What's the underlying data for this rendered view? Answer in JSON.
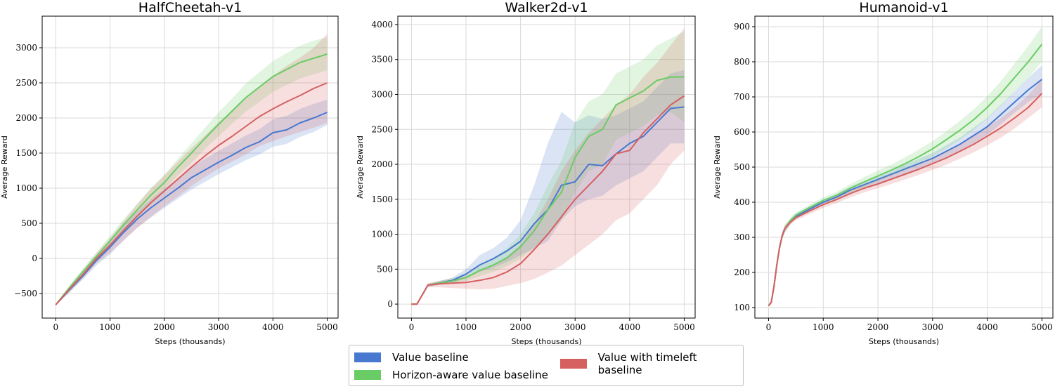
{
  "legend": {
    "items": [
      {
        "label": "Value baseline",
        "color": "#4878cf"
      },
      {
        "label": "Horizon-aware value baseline",
        "color": "#6acc65"
      },
      {
        "label": "Value with timeleft baseline",
        "color": "#d65f5f"
      }
    ]
  },
  "chart_data": [
    {
      "type": "line",
      "title": "HalfCheetah-v1",
      "xlabel": "Steps (thousands)",
      "ylabel": "Average Reward",
      "xlim": [
        -250,
        5200
      ],
      "ylim": [
        -850,
        3450
      ],
      "xticks": [
        0,
        1000,
        2000,
        3000,
        4000,
        5000
      ],
      "yticks": [
        -500,
        0,
        500,
        1000,
        1500,
        2000,
        2500,
        3000
      ],
      "ytick_labels": [
        "−500",
        "0",
        "500",
        "1000",
        "1500",
        "2000",
        "2500",
        "3000"
      ],
      "grid": true,
      "x": [
        0,
        250,
        500,
        750,
        1000,
        1250,
        1500,
        1750,
        2000,
        2250,
        2500,
        2750,
        3000,
        3250,
        3500,
        3750,
        4000,
        4250,
        4500,
        4750,
        5000
      ],
      "series": [
        {
          "name": "Value baseline",
          "color": "#4878cf",
          "mean": [
            -660,
            -450,
            -250,
            -30,
            160,
            370,
            560,
            720,
            860,
            1000,
            1150,
            1260,
            1370,
            1470,
            1580,
            1660,
            1790,
            1830,
            1930,
            2000,
            2080
          ],
          "lower": [
            -670,
            -490,
            -300,
            -100,
            60,
            250,
            440,
            580,
            720,
            850,
            980,
            1090,
            1200,
            1300,
            1400,
            1480,
            1590,
            1630,
            1730,
            1800,
            1900
          ],
          "upper": [
            -650,
            -410,
            -200,
            40,
            260,
            480,
            670,
            840,
            990,
            1140,
            1300,
            1420,
            1530,
            1640,
            1750,
            1840,
            1980,
            2030,
            2130,
            2200,
            2260
          ]
        },
        {
          "name": "Horizon-aware value baseline",
          "color": "#6acc65",
          "mean": [
            -660,
            -420,
            -190,
            30,
            250,
            480,
            690,
            900,
            1080,
            1300,
            1500,
            1710,
            1910,
            2100,
            2290,
            2440,
            2590,
            2690,
            2790,
            2850,
            2910
          ],
          "lower": [
            -670,
            -450,
            -240,
            -30,
            180,
            400,
            610,
            800,
            980,
            1180,
            1360,
            1560,
            1740,
            1920,
            2090,
            2230,
            2370,
            2470,
            2560,
            2620,
            2680
          ],
          "upper": [
            -650,
            -390,
            -140,
            90,
            320,
            560,
            780,
            1000,
            1190,
            1420,
            1640,
            1860,
            2080,
            2280,
            2490,
            2650,
            2810,
            2920,
            3030,
            3100,
            3150
          ]
        },
        {
          "name": "Value with timeleft baseline",
          "color": "#d65f5f",
          "mean": [
            -660,
            -440,
            -230,
            0,
            190,
            400,
            600,
            790,
            960,
            1130,
            1300,
            1460,
            1610,
            1740,
            1880,
            2020,
            2130,
            2230,
            2320,
            2420,
            2500
          ],
          "lower": [
            -670,
            -480,
            -290,
            -70,
            80,
            260,
            430,
            590,
            740,
            880,
            1030,
            1160,
            1280,
            1380,
            1480,
            1600,
            1670,
            1740,
            1800,
            1860,
            1930
          ],
          "upper": [
            -650,
            -400,
            -170,
            70,
            290,
            530,
            770,
            990,
            1180,
            1380,
            1570,
            1750,
            1940,
            2100,
            2280,
            2440,
            2600,
            2740,
            2860,
            3000,
            3200
          ]
        }
      ]
    },
    {
      "type": "line",
      "title": "Walker2d-v1",
      "xlabel": "Steps (thousands)",
      "ylabel": "Average Reward",
      "xlim": [
        -250,
        5200
      ],
      "ylim": [
        -200,
        4120
      ],
      "xticks": [
        0,
        1000,
        2000,
        3000,
        4000,
        5000
      ],
      "yticks": [
        0,
        500,
        1000,
        1500,
        2000,
        2500,
        3000,
        3500,
        4000
      ],
      "ytick_labels": [
        "0",
        "500",
        "1000",
        "1500",
        "2000",
        "2500",
        "3000",
        "3500",
        "4000"
      ],
      "grid": true,
      "x": [
        0,
        100,
        300,
        500,
        750,
        1000,
        1250,
        1500,
        1750,
        2000,
        2250,
        2500,
        2750,
        3000,
        3250,
        3500,
        3750,
        4000,
        4250,
        4500,
        4750,
        5000
      ],
      "series": [
        {
          "name": "Value baseline",
          "color": "#4878cf",
          "mean": [
            0,
            0,
            270,
            300,
            340,
            430,
            560,
            650,
            760,
            900,
            1150,
            1350,
            1700,
            1750,
            2000,
            1980,
            2150,
            2300,
            2400,
            2600,
            2800,
            2820
          ],
          "lower": [
            0,
            0,
            250,
            270,
            300,
            370,
            460,
            520,
            600,
            700,
            800,
            900,
            1200,
            1400,
            1500,
            1550,
            1700,
            1800,
            1900,
            2100,
            2300,
            2300
          ],
          "upper": [
            0,
            0,
            290,
            330,
            380,
            500,
            700,
            800,
            950,
            1200,
            1700,
            2300,
            2750,
            2600,
            2700,
            2650,
            2700,
            2800,
            2900,
            3100,
            3300,
            3350
          ]
        },
        {
          "name": "Horizon-aware value baseline",
          "color": "#6acc65",
          "mean": [
            0,
            0,
            270,
            300,
            330,
            380,
            480,
            560,
            660,
            820,
            1050,
            1350,
            1600,
            2100,
            2400,
            2500,
            2850,
            2950,
            3050,
            3200,
            3250,
            3250
          ],
          "lower": [
            0,
            0,
            250,
            280,
            300,
            330,
            400,
            460,
            540,
            650,
            800,
            1000,
            1200,
            1600,
            1900,
            2000,
            2350,
            2450,
            2550,
            2700,
            2750,
            2600
          ],
          "upper": [
            0,
            0,
            290,
            330,
            370,
            440,
            560,
            660,
            800,
            1000,
            1300,
            1700,
            2050,
            2600,
            2900,
            3000,
            3300,
            3400,
            3500,
            3700,
            3800,
            3900
          ]
        },
        {
          "name": "Value with timeleft baseline",
          "color": "#d65f5f",
          "mean": [
            0,
            0,
            270,
            290,
            300,
            310,
            340,
            380,
            460,
            580,
            780,
            1000,
            1250,
            1500,
            1700,
            1900,
            2150,
            2200,
            2450,
            2650,
            2850,
            2980
          ],
          "lower": [
            0,
            0,
            240,
            240,
            230,
            220,
            210,
            220,
            260,
            300,
            360,
            450,
            550,
            700,
            850,
            1000,
            1200,
            1300,
            1500,
            1700,
            2000,
            2200
          ],
          "upper": [
            0,
            0,
            300,
            330,
            360,
            400,
            480,
            560,
            680,
            850,
            1150,
            1500,
            1900,
            2200,
            2450,
            2650,
            2850,
            3000,
            3250,
            3450,
            3700,
            3950
          ]
        }
      ]
    },
    {
      "type": "line",
      "title": "Humanoid-v1",
      "xlabel": "Steps (thousands)",
      "ylabel": "Average Reward",
      "xlim": [
        -250,
        5200
      ],
      "ylim": [
        70,
        930
      ],
      "xticks": [
        0,
        1000,
        2000,
        3000,
        4000,
        5000
      ],
      "yticks": [
        100,
        200,
        300,
        400,
        500,
        600,
        700,
        800,
        900
      ],
      "ytick_labels": [
        "100",
        "200",
        "300",
        "400",
        "500",
        "600",
        "700",
        "800",
        "900"
      ],
      "grid": true,
      "x": [
        0,
        50,
        100,
        150,
        200,
        250,
        300,
        400,
        500,
        750,
        1000,
        1250,
        1500,
        1750,
        2000,
        2250,
        2500,
        2750,
        3000,
        3250,
        3500,
        3750,
        4000,
        4250,
        4500,
        4750,
        5000
      ],
      "series": [
        {
          "name": "Value baseline",
          "color": "#4878cf",
          "mean": [
            105,
            115,
            160,
            220,
            270,
            305,
            325,
            345,
            360,
            380,
            400,
            415,
            435,
            450,
            465,
            480,
            495,
            510,
            525,
            545,
            565,
            590,
            615,
            650,
            685,
            720,
            750
          ],
          "lower": [
            103,
            110,
            150,
            210,
            260,
            295,
            315,
            338,
            352,
            372,
            392,
            406,
            425,
            440,
            454,
            468,
            482,
            496,
            510,
            528,
            546,
            568,
            592,
            622,
            655,
            685,
            710
          ],
          "upper": [
            107,
            120,
            170,
            230,
            280,
            315,
            335,
            352,
            368,
            388,
            408,
            424,
            445,
            460,
            476,
            492,
            508,
            524,
            540,
            562,
            584,
            612,
            640,
            678,
            715,
            755,
            790
          ]
        },
        {
          "name": "Horizon-aware value baseline",
          "color": "#6acc65",
          "mean": [
            105,
            115,
            160,
            220,
            270,
            305,
            325,
            348,
            363,
            385,
            405,
            420,
            440,
            458,
            475,
            492,
            510,
            530,
            552,
            578,
            605,
            635,
            670,
            710,
            755,
            800,
            850
          ],
          "lower": [
            103,
            110,
            150,
            210,
            260,
            295,
            315,
            340,
            355,
            377,
            396,
            410,
            428,
            444,
            460,
            476,
            492,
            510,
            530,
            554,
            578,
            606,
            638,
            675,
            715,
            755,
            800
          ],
          "upper": [
            107,
            120,
            170,
            230,
            280,
            315,
            335,
            356,
            371,
            393,
            414,
            430,
            452,
            472,
            490,
            508,
            528,
            550,
            574,
            602,
            632,
            664,
            702,
            745,
            795,
            845,
            900
          ]
        },
        {
          "name": "Value with timeleft baseline",
          "color": "#d65f5f",
          "mean": [
            105,
            115,
            160,
            220,
            270,
            305,
            325,
            343,
            356,
            375,
            393,
            408,
            425,
            440,
            452,
            466,
            480,
            494,
            510,
            526,
            545,
            565,
            588,
            612,
            640,
            670,
            710
          ],
          "lower": [
            103,
            110,
            150,
            210,
            260,
            295,
            315,
            336,
            348,
            366,
            384,
            398,
            414,
            428,
            440,
            452,
            465,
            478,
            492,
            507,
            524,
            542,
            562,
            584,
            610,
            640,
            670
          ],
          "upper": [
            107,
            120,
            170,
            230,
            280,
            315,
            335,
            350,
            364,
            384,
            402,
            418,
            436,
            452,
            464,
            480,
            495,
            510,
            528,
            545,
            566,
            588,
            614,
            640,
            670,
            705,
            750
          ]
        }
      ]
    }
  ]
}
